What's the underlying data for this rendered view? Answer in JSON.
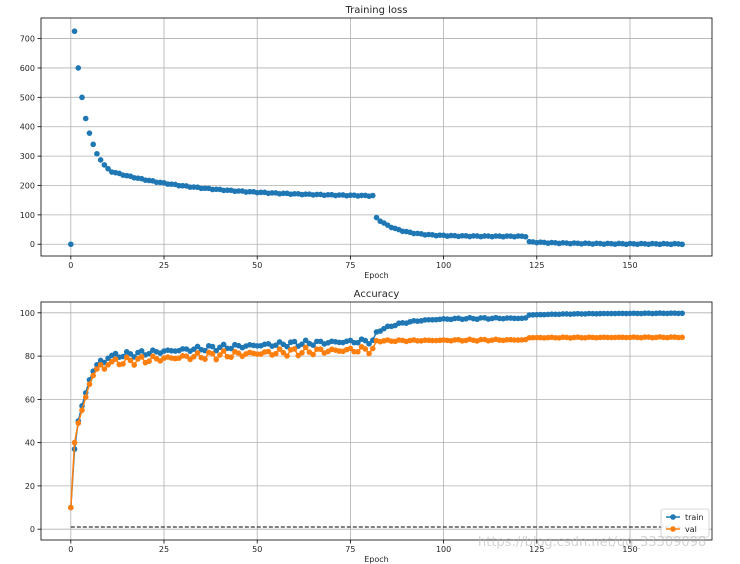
{
  "chart_data": [
    {
      "type": "scatter",
      "title": "Training loss",
      "xlabel": "Epoch",
      "ylabel": "",
      "xlim": [
        -8,
        172
      ],
      "ylim": [
        -40,
        770
      ],
      "xticks": [
        0,
        25,
        50,
        75,
        100,
        125,
        150
      ],
      "yticks": [
        0,
        100,
        200,
        300,
        400,
        500,
        600,
        700
      ],
      "grid": true,
      "color": "#1f77b4",
      "series": [
        {
          "name": "",
          "segments": [
            {
              "from": 0,
              "to": 0,
              "values": [
                0
              ]
            },
            {
              "from": 1,
              "to": 10,
              "values": [
                725,
                600,
                500,
                428,
                378,
                340,
                308,
                287,
                270,
                257
              ]
            },
            {
              "from": 11,
              "to": 81,
              "start": 247,
              "end": 165,
              "curve": 3.0
            },
            {
              "from": 82,
              "to": 122,
              "start": 90,
              "end": 27,
              "curve": 7.0
            },
            {
              "from": 123,
              "to": 164,
              "start": 8,
              "end": 1,
              "curve": 4.0
            }
          ]
        }
      ]
    },
    {
      "type": "line",
      "title": "Accuracy",
      "xlabel": "Epoch",
      "ylabel": "",
      "xlim": [
        -8,
        172
      ],
      "ylim": [
        -5,
        105
      ],
      "xticks": [
        0,
        25,
        50,
        75,
        100,
        125,
        150
      ],
      "yticks": [
        0,
        20,
        40,
        60,
        80,
        100
      ],
      "grid": true,
      "legend_position": "lower-right",
      "baseline": 1,
      "series": [
        {
          "name": "train",
          "color": "#1f77b4",
          "segments": [
            {
              "from": 0,
              "to": 10,
              "values": [
                10,
                37,
                50,
                57,
                63,
                69,
                73,
                76,
                78,
                77,
                79
              ]
            },
            {
              "from": 11,
              "to": 81,
              "start": 80,
              "end": 87,
              "curve": 1.3,
              "jitter": 1.4
            },
            {
              "from": 82,
              "to": 122,
              "start": 91,
              "end": 97.5,
              "curve": 6.0,
              "jitter": 0.4
            },
            {
              "from": 123,
              "to": 164,
              "start": 99,
              "end": 99.8,
              "curve": 3.0,
              "jitter": 0.1
            }
          ]
        },
        {
          "name": "val",
          "color": "#ff7f0e",
          "segments": [
            {
              "from": 0,
              "to": 10,
              "values": [
                10,
                40,
                49,
                55,
                61,
                67,
                71,
                74,
                76,
                74,
                76
              ]
            },
            {
              "from": 11,
              "to": 81,
              "start": 77,
              "end": 83,
              "curve": 1.3,
              "jitter": 2.0
            },
            {
              "from": 82,
              "to": 122,
              "start": 87,
              "end": 87.5,
              "curve": 1.0,
              "jitter": 0.4
            },
            {
              "from": 123,
              "to": 164,
              "start": 88.5,
              "end": 88.7,
              "curve": 1.0,
              "jitter": 0.2
            }
          ]
        }
      ]
    }
  ],
  "watermark": "https://blog.csdn.net/qq_33309098"
}
